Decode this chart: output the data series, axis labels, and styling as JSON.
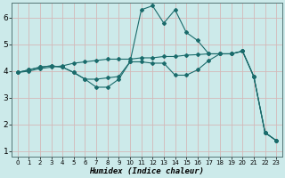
{
  "xlabel": "Humidex (Indice chaleur)",
  "background_color": "#cceaea",
  "grid_color_major": "#d4b8b8",
  "grid_color_minor": "#cce8e8",
  "line_color": "#1a6b6b",
  "xlim": [
    -0.5,
    23.5
  ],
  "ylim": [
    0.8,
    6.55
  ],
  "xticks": [
    0,
    1,
    2,
    3,
    4,
    5,
    6,
    7,
    8,
    9,
    10,
    11,
    12,
    13,
    14,
    15,
    16,
    17,
    18,
    19,
    20,
    21,
    22,
    23
  ],
  "yticks": [
    1,
    2,
    3,
    4,
    5,
    6
  ],
  "line1_x": [
    0,
    1,
    2,
    3,
    4,
    5,
    6,
    7,
    8,
    9,
    10,
    11,
    12,
    13,
    14,
    15,
    16,
    17,
    18,
    19,
    20,
    21,
    22,
    23
  ],
  "line1_y": [
    3.95,
    4.05,
    4.15,
    4.2,
    4.15,
    3.95,
    3.7,
    3.7,
    3.75,
    3.8,
    4.35,
    4.35,
    4.3,
    4.3,
    3.85,
    3.85,
    4.05,
    4.4,
    4.65,
    4.65,
    4.75,
    3.8,
    1.7,
    1.4
  ],
  "line2_x": [
    0,
    1,
    2,
    3,
    4,
    5,
    6,
    7,
    8,
    9,
    10,
    11,
    12,
    13,
    14,
    15,
    16,
    17,
    18,
    19,
    20,
    21,
    22,
    23
  ],
  "line2_y": [
    3.95,
    4.05,
    4.15,
    4.2,
    4.15,
    3.95,
    3.7,
    3.4,
    3.4,
    3.7,
    4.35,
    6.3,
    6.45,
    5.8,
    6.3,
    5.45,
    5.15,
    4.65,
    4.65,
    4.65,
    4.75,
    3.8,
    1.7,
    1.4
  ],
  "line3_x": [
    0,
    1,
    2,
    3,
    4,
    5,
    6,
    7,
    8,
    9,
    10,
    11,
    12,
    13,
    14,
    15,
    16,
    17,
    18,
    19,
    20,
    21,
    22,
    23
  ],
  "line3_y": [
    3.95,
    4.0,
    4.1,
    4.15,
    4.2,
    4.3,
    4.35,
    4.4,
    4.45,
    4.45,
    4.45,
    4.5,
    4.5,
    4.55,
    4.55,
    4.6,
    4.62,
    4.65,
    4.65,
    4.65,
    4.75,
    3.8,
    1.7,
    1.4
  ]
}
